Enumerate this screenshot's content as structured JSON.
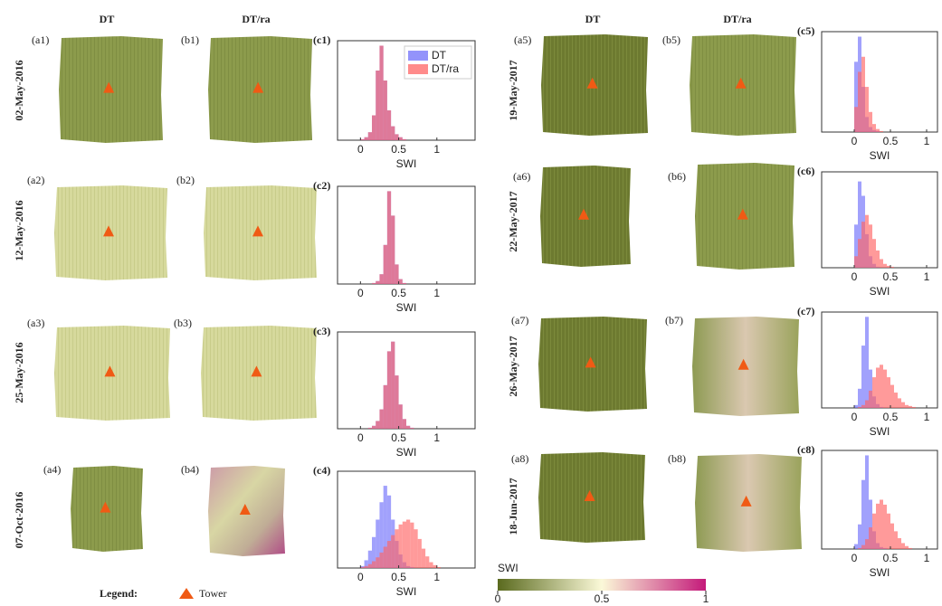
{
  "headers": {
    "left_a": "DT",
    "left_b": "DT/ra",
    "right_a": "DT",
    "right_b": "DT/ra"
  },
  "rows": [
    {
      "date": "02-May-2016",
      "map_a": "(a1)",
      "map_b": "(b1)"
    },
    {
      "date": "12-May-2016",
      "map_a": "(a2)",
      "map_b": "(b2)"
    },
    {
      "date": "25-May-2016",
      "map_a": "(a3)",
      "map_b": "(b3)"
    },
    {
      "date": "07-Oct-2016",
      "map_a": "(a4)",
      "map_b": "(b4)"
    },
    {
      "date": "19-May-2017",
      "map_a": "(a5)",
      "map_b": "(b5)"
    },
    {
      "date": "22-May-2017",
      "map_a": "(a6)",
      "map_b": "(b6)"
    },
    {
      "date": "26-May-2017",
      "map_a": "(a7)",
      "map_b": "(b7)"
    },
    {
      "date": "18-Jun-2017",
      "map_a": "(a8)",
      "map_b": "(b8)"
    }
  ],
  "chart_data": [
    {
      "type": "histogram",
      "label": "(c1)",
      "xlabel": "SWI",
      "xlim": [
        -0.3,
        1.5
      ],
      "xticks": [
        0,
        0.5,
        1
      ],
      "ylim": [
        0,
        100
      ],
      "legend": "top-right",
      "bins": [
        0,
        0.05,
        0.1,
        0.15,
        0.2,
        0.25,
        0.3,
        0.35,
        0.4,
        0.45,
        0.5,
        0.55,
        0.6,
        0.65,
        0.7,
        0.75,
        0.8,
        0.85,
        0.9,
        0.95,
        1,
        1.05,
        1.1
      ],
      "series": [
        {
          "name": "DT",
          "color": "#6f6ffa",
          "values": [
            1,
            3,
            8,
            25,
            70,
            95,
            60,
            30,
            14,
            6,
            3,
            1,
            0,
            0,
            0,
            0,
            0,
            0,
            0,
            0,
            0,
            0
          ]
        },
        {
          "name": "DT/ra",
          "color": "#ff6464",
          "values": [
            1,
            3,
            8,
            25,
            70,
            95,
            60,
            30,
            14,
            6,
            3,
            1,
            0,
            0,
            0,
            0,
            0,
            0,
            0,
            0,
            0,
            0
          ]
        }
      ]
    },
    {
      "type": "histogram",
      "label": "(c2)",
      "xlabel": "SWI",
      "xlim": [
        -0.3,
        1.5
      ],
      "xticks": [
        0,
        0.5,
        1
      ],
      "ylim": [
        0,
        100
      ],
      "bins": [
        0,
        0.05,
        0.1,
        0.15,
        0.2,
        0.25,
        0.3,
        0.35,
        0.4,
        0.45,
        0.5,
        0.55,
        0.6,
        0.65,
        0.7,
        0.75,
        0.8,
        0.85,
        0.9,
        0.95,
        1,
        1.05,
        1.1
      ],
      "series": [
        {
          "color": "#6f6ffa",
          "values": [
            0,
            0,
            0,
            1,
            3,
            10,
            40,
            95,
            70,
            20,
            5,
            1,
            0,
            0,
            0,
            0,
            0,
            0,
            0,
            0,
            0,
            0
          ]
        },
        {
          "color": "#ff6464",
          "values": [
            0,
            0,
            0,
            1,
            3,
            10,
            40,
            95,
            70,
            20,
            5,
            1,
            0,
            0,
            0,
            0,
            0,
            0,
            0,
            0,
            0,
            0
          ]
        }
      ]
    },
    {
      "type": "histogram",
      "label": "(c3)",
      "xlabel": "SWI",
      "xlim": [
        -0.3,
        1.5
      ],
      "xticks": [
        0,
        0.5,
        1
      ],
      "ylim": [
        0,
        100
      ],
      "bins": [
        0,
        0.05,
        0.1,
        0.15,
        0.2,
        0.25,
        0.3,
        0.35,
        0.4,
        0.45,
        0.5,
        0.55,
        0.6,
        0.65,
        0.7,
        0.75,
        0.8,
        0.85,
        0.9,
        0.95,
        1,
        1.05,
        1.1
      ],
      "series": [
        {
          "color": "#6f6ffa",
          "values": [
            0,
            0,
            1,
            3,
            8,
            20,
            45,
            80,
            90,
            55,
            25,
            10,
            3,
            1,
            0,
            0,
            0,
            0,
            0,
            0,
            0,
            0
          ]
        },
        {
          "color": "#ff6464",
          "values": [
            0,
            0,
            1,
            3,
            8,
            20,
            45,
            80,
            90,
            55,
            25,
            10,
            3,
            1,
            0,
            0,
            0,
            0,
            0,
            0,
            0,
            0
          ]
        }
      ]
    },
    {
      "type": "histogram",
      "label": "(c4)",
      "xlabel": "SWI",
      "xlim": [
        -0.3,
        1.5
      ],
      "xticks": [
        0,
        0.5,
        1
      ],
      "ylim": [
        0,
        100
      ],
      "bins": [
        0,
        0.05,
        0.1,
        0.15,
        0.2,
        0.25,
        0.3,
        0.35,
        0.4,
        0.45,
        0.5,
        0.55,
        0.6,
        0.65,
        0.7,
        0.75,
        0.8,
        0.85,
        0.9,
        0.95,
        1,
        1.05,
        1.1
      ],
      "series": [
        {
          "color": "#6f6ffa",
          "values": [
            2,
            8,
            18,
            32,
            50,
            68,
            85,
            75,
            50,
            28,
            14,
            6,
            2,
            1,
            0,
            0,
            0,
            0,
            0,
            0,
            0,
            0
          ]
        },
        {
          "color": "#ff6464",
          "values": [
            1,
            2,
            4,
            7,
            11,
            16,
            22,
            28,
            34,
            40,
            45,
            48,
            50,
            47,
            40,
            30,
            20,
            12,
            6,
            3,
            1,
            0
          ]
        }
      ]
    },
    {
      "type": "histogram",
      "label": "(c5)",
      "xlabel": "SWI",
      "xlim": [
        -0.45,
        1.15
      ],
      "xticks": [
        0,
        0.5,
        1
      ],
      "ylim": [
        0,
        100
      ],
      "bins": [
        0,
        0.05,
        0.1,
        0.15,
        0.2,
        0.25,
        0.3,
        0.35,
        0.4,
        0.45,
        0.5,
        0.55,
        0.6,
        0.65,
        0.7,
        0.75,
        0.8,
        0.85,
        0.9,
        0.95,
        1,
        1.05,
        1.1
      ],
      "series": [
        {
          "color": "#6f6ffa",
          "values": [
            70,
            95,
            45,
            15,
            5,
            2,
            1,
            0,
            0,
            0,
            0,
            0,
            0,
            0,
            0,
            0,
            0,
            0,
            0,
            0,
            0,
            0
          ]
        },
        {
          "color": "#ff6464",
          "values": [
            25,
            60,
            75,
            45,
            20,
            8,
            3,
            1,
            0,
            0,
            0,
            0,
            0,
            0,
            0,
            0,
            0,
            0,
            0,
            0,
            0,
            0
          ]
        }
      ]
    },
    {
      "type": "histogram",
      "label": "(c6)",
      "xlabel": "SWI",
      "xlim": [
        -0.45,
        1.15
      ],
      "xticks": [
        0,
        0.5,
        1
      ],
      "ylim": [
        0,
        100
      ],
      "bins": [
        0,
        0.05,
        0.1,
        0.15,
        0.2,
        0.25,
        0.3,
        0.35,
        0.4,
        0.45,
        0.5,
        0.55,
        0.6,
        0.65,
        0.7,
        0.75,
        0.8,
        0.85,
        0.9,
        0.95,
        1,
        1.05,
        1.1
      ],
      "series": [
        {
          "color": "#6f6ffa",
          "values": [
            45,
            90,
            75,
            35,
            12,
            4,
            1,
            0,
            0,
            0,
            0,
            0,
            0,
            0,
            0,
            0,
            0,
            0,
            0,
            0,
            0,
            0
          ]
        },
        {
          "color": "#ff6464",
          "values": [
            12,
            30,
            48,
            55,
            45,
            30,
            18,
            9,
            4,
            2,
            1,
            0,
            0,
            0,
            0,
            0,
            0,
            0,
            0,
            0,
            0,
            0
          ]
        }
      ]
    },
    {
      "type": "histogram",
      "label": "(c7)",
      "xlabel": "SWI",
      "xlim": [
        -0.45,
        1.15
      ],
      "xticks": [
        0,
        0.5,
        1
      ],
      "ylim": [
        0,
        100
      ],
      "bins": [
        0,
        0.05,
        0.1,
        0.15,
        0.2,
        0.25,
        0.3,
        0.35,
        0.4,
        0.45,
        0.5,
        0.55,
        0.6,
        0.65,
        0.7,
        0.75,
        0.8,
        0.85,
        0.9,
        0.95,
        1,
        1.05,
        1.1
      ],
      "series": [
        {
          "color": "#6f6ffa",
          "values": [
            3,
            20,
            65,
            95,
            40,
            12,
            4,
            1,
            0,
            0,
            0,
            0,
            0,
            0,
            0,
            0,
            0,
            0,
            0,
            0,
            0,
            0
          ]
        },
        {
          "color": "#ff6464",
          "values": [
            0,
            1,
            3,
            8,
            18,
            32,
            42,
            45,
            40,
            32,
            24,
            16,
            10,
            6,
            3,
            2,
            1,
            0,
            0,
            0,
            0,
            0
          ]
        }
      ]
    },
    {
      "type": "histogram",
      "label": "(c8)",
      "xlabel": "SWI",
      "xlim": [
        -0.45,
        1.15
      ],
      "xticks": [
        0,
        0.5,
        1
      ],
      "ylim": [
        0,
        100
      ],
      "bins": [
        0,
        0.05,
        0.1,
        0.15,
        0.2,
        0.25,
        0.3,
        0.35,
        0.4,
        0.45,
        0.5,
        0.55,
        0.6,
        0.65,
        0.7,
        0.75,
        0.8,
        0.85,
        0.9,
        0.95,
        1,
        1.05,
        1.1
      ],
      "series": [
        {
          "color": "#6f6ffa",
          "values": [
            5,
            25,
            70,
            95,
            50,
            18,
            6,
            2,
            1,
            0,
            0,
            0,
            0,
            0,
            0,
            0,
            0,
            0,
            0,
            0,
            0,
            0
          ]
        },
        {
          "color": "#ff6464",
          "values": [
            0,
            1,
            4,
            10,
            22,
            36,
            46,
            50,
            45,
            36,
            26,
            18,
            11,
            6,
            3,
            1,
            0,
            0,
            0,
            0,
            0,
            0
          ]
        }
      ]
    }
  ],
  "legend": {
    "title": "Legend:",
    "marker": "Tower"
  },
  "colorbar": {
    "title": "SWI",
    "lim": [
      0,
      1
    ],
    "ticks": [
      0,
      0.5,
      1
    ]
  }
}
